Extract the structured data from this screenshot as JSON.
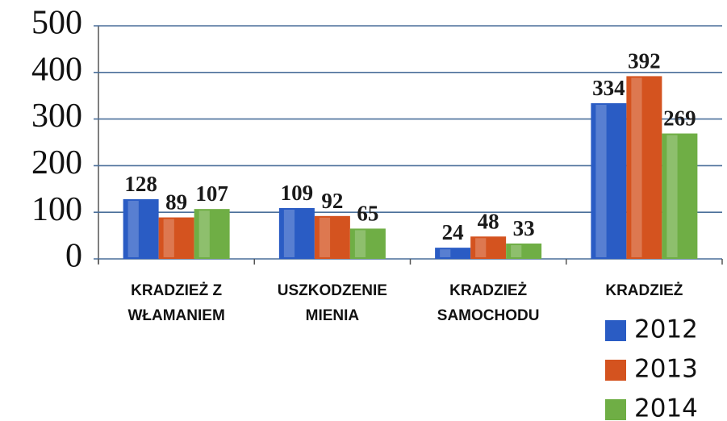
{
  "chart_data": {
    "type": "bar",
    "categories": [
      "KRADZIEŻ Z WŁAMANIEM",
      "USZKODZENIE MIENIA",
      "KRADZIEŻ SAMOCHODU",
      "KRADZIEŻ"
    ],
    "series": [
      {
        "name": "2012",
        "color": "#2a5cc4",
        "values": [
          128,
          109,
          24,
          334
        ]
      },
      {
        "name": "2013",
        "color": "#d4531f",
        "values": [
          89,
          92,
          48,
          392
        ]
      },
      {
        "name": "2014",
        "color": "#6fae45",
        "values": [
          107,
          65,
          33,
          269
        ]
      }
    ],
    "ylim": [
      0,
      500
    ],
    "yticks": [
      0,
      100,
      200,
      300,
      400,
      500
    ],
    "grid": true,
    "legend": "bottom-right"
  }
}
